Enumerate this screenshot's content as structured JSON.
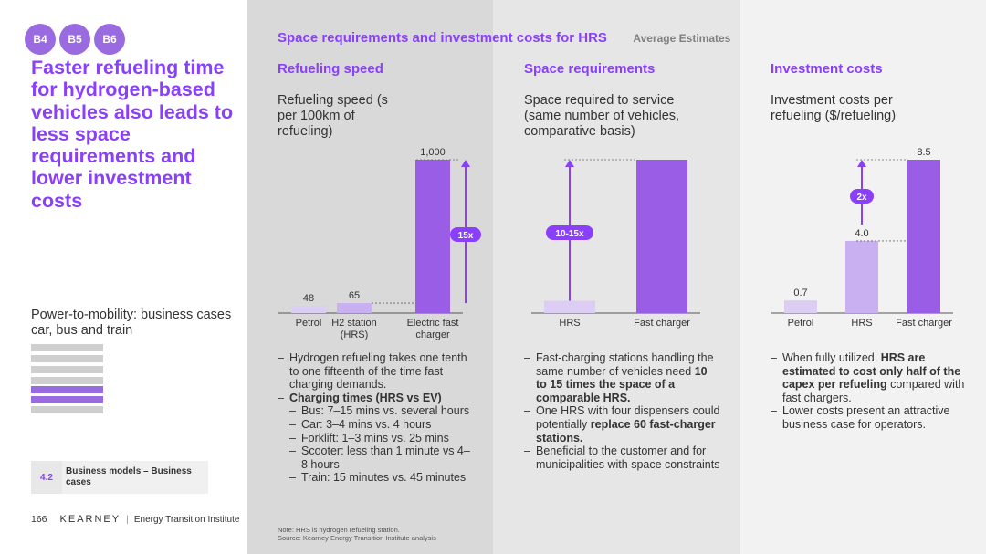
{
  "badges": [
    "B4",
    "B5",
    "B6"
  ],
  "main_title": "Faster refueling time for hydrogen-based vehicles also leads to less space requirements and lower investment costs",
  "subtitle": "Power-to-mobility: business cases car, bus and train",
  "section": {
    "number": "4.2",
    "label": "Business models – Business cases"
  },
  "footer": {
    "page": "166",
    "brand": "KEARNEY",
    "institute": "Energy Transition Institute"
  },
  "header": {
    "title": "Space requirements and investment costs for HRS",
    "note": "Average Estimates"
  },
  "columns": [
    {
      "title": "Refueling speed",
      "chart_title": "Refueling speed (s per 100km of refueling)",
      "bullets": [
        {
          "level": 0,
          "parts": [
            {
              "t": "Hydrogen refueling takes one tenth to one fifteenth of the time fast charging demands."
            }
          ]
        },
        {
          "level": 0,
          "parts": [
            {
              "t": "Charging times (HRS vs EV)",
              "b": true
            }
          ]
        },
        {
          "level": 1,
          "parts": [
            {
              "t": "Bus: 7–15 mins vs. several hours"
            }
          ]
        },
        {
          "level": 1,
          "parts": [
            {
              "t": "Car: 3–4 mins vs. 4 hours"
            }
          ]
        },
        {
          "level": 1,
          "parts": [
            {
              "t": "Forklift: 1–3 mins vs. 25 mins"
            }
          ]
        },
        {
          "level": 1,
          "parts": [
            {
              "t": "Scooter: less than 1 minute vs 4–8 hours"
            }
          ]
        },
        {
          "level": 1,
          "parts": [
            {
              "t": "Train: 15 minutes vs. 45 minutes"
            }
          ]
        }
      ]
    },
    {
      "title": "Space requirements",
      "chart_title": "Space required to service (same number of vehicles, comparative basis)",
      "bullets": [
        {
          "level": 0,
          "parts": [
            {
              "t": "Fast-charging stations handling the same number of vehicles need "
            },
            {
              "t": "10 to 15 times the space of a comparable HRS.",
              "b": true
            }
          ]
        },
        {
          "level": 0,
          "parts": [
            {
              "t": "One HRS with four dispensers could potentially "
            },
            {
              "t": "replace 60 fast-charger stations.",
              "b": true
            }
          ]
        },
        {
          "level": 0,
          "parts": [
            {
              "t": "Beneficial to the customer and for municipalities with space constraints"
            }
          ]
        }
      ]
    },
    {
      "title": "Investment costs",
      "chart_title": "Investment costs per refueling ($/refueling)",
      "bullets": [
        {
          "level": 0,
          "parts": [
            {
              "t": "When fully utilized, "
            },
            {
              "t": "HRS are estimated to cost only half of the capex per refueling",
              "b": true
            },
            {
              "t": " compared with fast chargers."
            }
          ]
        },
        {
          "level": 0,
          "parts": [
            {
              "t": "Lower costs present an attractive business case for operators."
            }
          ]
        }
      ]
    }
  ],
  "chart_data": [
    {
      "type": "bar",
      "title": "Refueling speed (s per 100km of refueling)",
      "categories": [
        "Petrol",
        "H2 station (HRS)",
        "Electric fast charger"
      ],
      "values": [
        48,
        65,
        1000
      ],
      "value_labels": [
        "48",
        "65",
        "1,000"
      ],
      "ylim": [
        0,
        1000
      ],
      "annotation": "15x",
      "colors": [
        "#dccdf5",
        "#c9b0f0",
        "#9a5ee6"
      ]
    },
    {
      "type": "bar",
      "title": "Space required to service (same number of vehicles, comparative basis)",
      "categories": [
        "HRS",
        "Fast charger"
      ],
      "values": [
        1,
        12.5
      ],
      "ylim": [
        0,
        12.5
      ],
      "annotation": "10-15x",
      "colors": [
        "#dccdf5",
        "#9a5ee6"
      ]
    },
    {
      "type": "bar",
      "title": "Investment costs per refueling ($/refueling)",
      "categories": [
        "Petrol",
        "HRS",
        "Fast charger"
      ],
      "values": [
        0.7,
        4.0,
        8.5
      ],
      "value_labels": [
        "0.7",
        "4.0",
        "8.5"
      ],
      "ylim": [
        0,
        8.5
      ],
      "annotation": "2x",
      "colors": [
        "#dccdf5",
        "#c9b0f0",
        "#9a5ee6"
      ]
    }
  ],
  "note": "Note: HRS is hydrogen refueling station.",
  "source": "Source: Kearney Energy Transition Institute analysis",
  "colors": {
    "accent": "#8a3ffc",
    "bar_light": "#dccdf5",
    "bar_mid": "#c9b0f0",
    "bar_dark": "#9a5ee6"
  }
}
